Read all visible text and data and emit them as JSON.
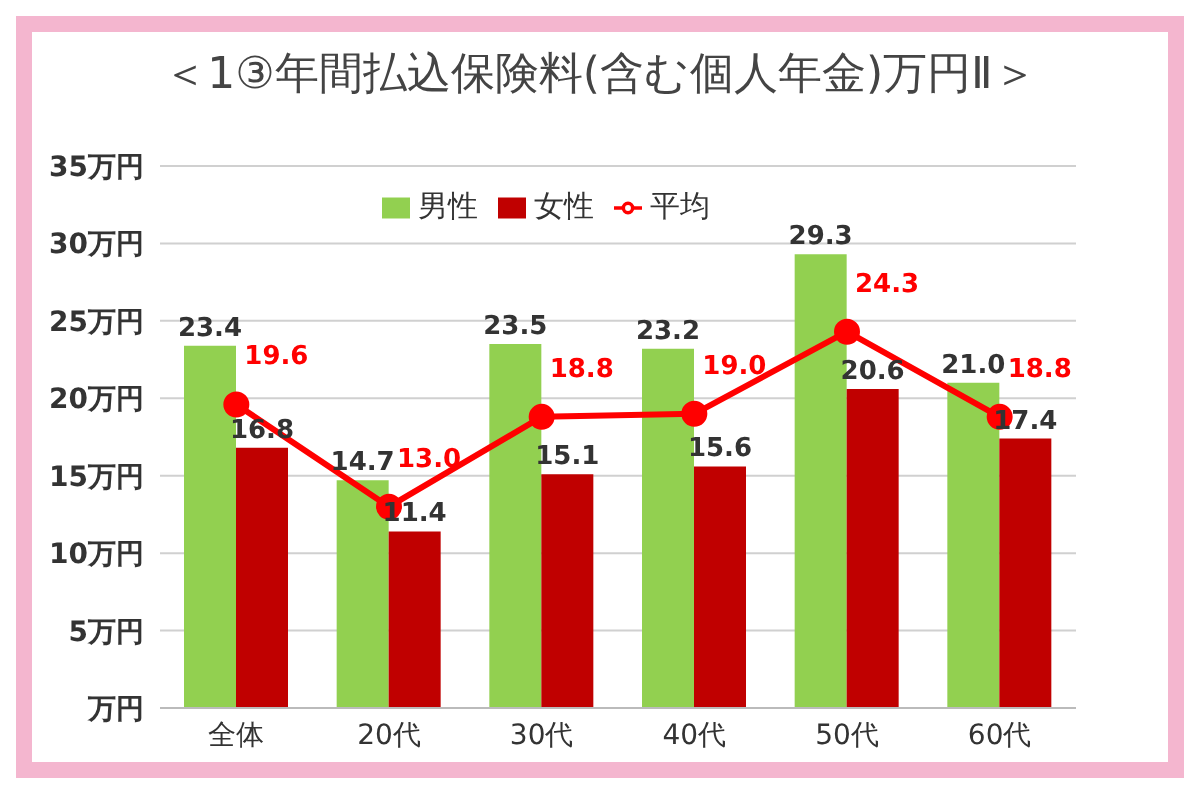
{
  "chart_data": {
    "type": "bar",
    "title": "＜1③年間払込保険料(含む個人年金)万円Ⅱ＞",
    "categories": [
      "全体",
      "20代",
      "30代",
      "40代",
      "50代",
      "60代"
    ],
    "series": [
      {
        "name": "男性",
        "color": "#92d050",
        "values": [
          23.4,
          14.7,
          23.5,
          23.2,
          29.3,
          21.0
        ],
        "value_labels": [
          "23.4",
          "14.7",
          "23.5",
          "23.2",
          "29.3",
          "21.0"
        ]
      },
      {
        "name": "女性",
        "color": "#c00000",
        "values": [
          16.8,
          11.4,
          15.1,
          15.6,
          20.6,
          17.4
        ],
        "value_labels": [
          "16.8",
          "11.4",
          "15.1",
          "15.6",
          "20.6",
          "17.4"
        ]
      },
      {
        "name": "平均",
        "type": "line",
        "color": "#ff0000",
        "marker": "circle",
        "values": [
          19.6,
          13.0,
          18.8,
          19.0,
          24.3,
          18.8
        ],
        "value_labels": [
          "19.6",
          "13.0",
          "18.8",
          "19.0",
          "24.3",
          "18.8"
        ]
      }
    ],
    "ylim": [
      0,
      35
    ],
    "yticks": [
      {
        "value": 0,
        "label": "万円"
      },
      {
        "value": 5,
        "label": "5万円"
      },
      {
        "value": 10,
        "label": "10万円"
      },
      {
        "value": 15,
        "label": "15万円"
      },
      {
        "value": 20,
        "label": "20万円"
      },
      {
        "value": 25,
        "label": "25万円"
      },
      {
        "value": 30,
        "label": "30万円"
      },
      {
        "value": 35,
        "label": "35万円"
      }
    ],
    "grid": "y",
    "legend": "top"
  }
}
